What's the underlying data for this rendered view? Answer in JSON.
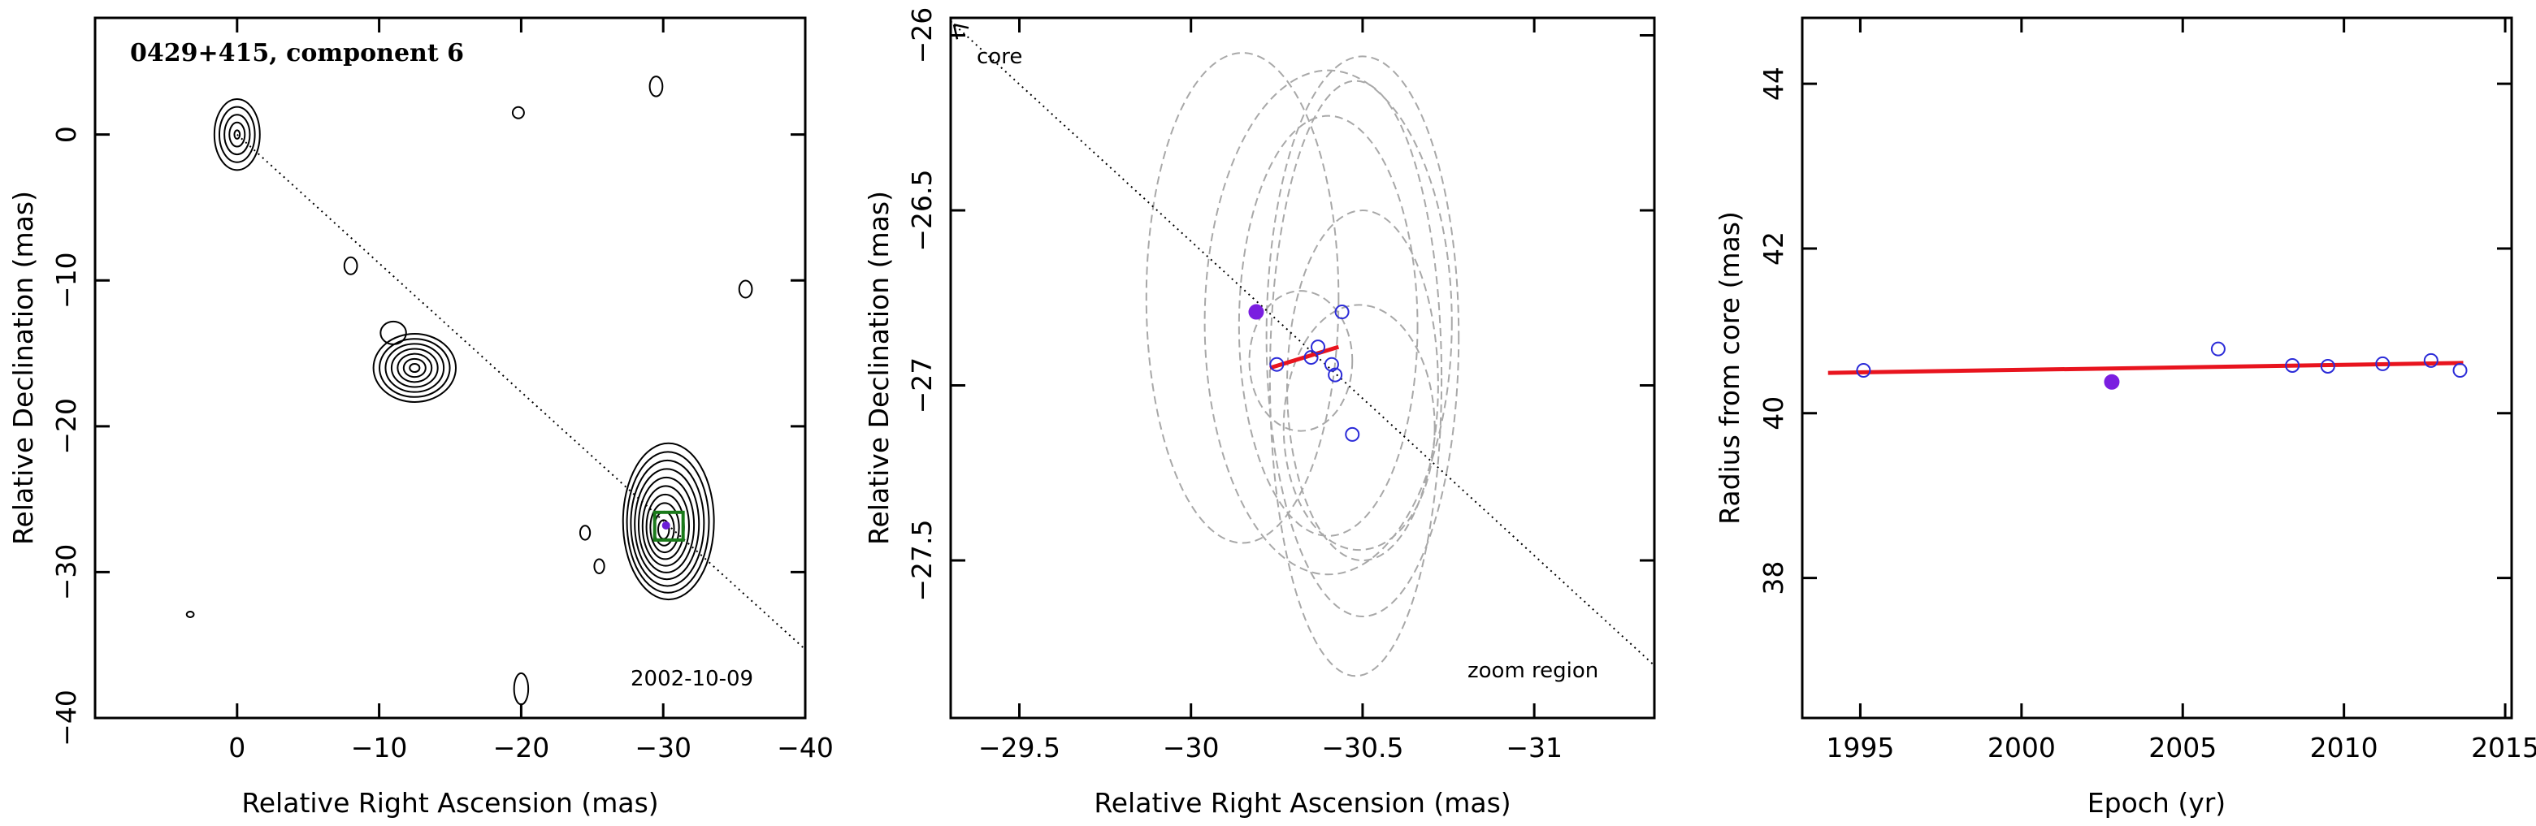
{
  "chart_data": [
    {
      "type": "contour",
      "title": "0429+415, component 6",
      "date_label": "2002-10-09",
      "xlabel": "Relative Right Ascension (mas)",
      "ylabel": "Relative Declination (mas)",
      "xlim": [
        10,
        -40
      ],
      "ylim": [
        -40,
        8
      ],
      "xticks": [
        0,
        -10,
        -20,
        -30,
        -40
      ],
      "yticks": [
        0,
        -10,
        -20,
        -30,
        -40
      ],
      "core_line": {
        "from": [
          0,
          0
        ],
        "to": [
          -40,
          -35.3
        ]
      },
      "zoom_box": {
        "x": [
          -29.4,
          -31.4
        ],
        "y": [
          -25.9,
          -27.8
        ]
      },
      "component_position": [
        -30.2,
        -26.8
      ],
      "contour_sources": [
        {
          "name": "core",
          "x": 0,
          "y": 0,
          "sx": 1.6,
          "sy": 2.5,
          "levels": 5
        },
        {
          "name": "knot",
          "x": -12.5,
          "y": -16,
          "sx": 2.9,
          "sy": 2.4,
          "levels": 7
        },
        {
          "name": "component",
          "x": -30.2,
          "y": -26.8,
          "sx": 3.2,
          "sy": 5.5,
          "levels": 10
        },
        {
          "name": "spot",
          "x": -19.8,
          "y": 1.5,
          "sx": 0.4,
          "sy": 0.4,
          "levels": 1
        },
        {
          "name": "spot",
          "x": -29.5,
          "y": 3.3,
          "sx": 0.45,
          "sy": 0.7,
          "levels": 1
        },
        {
          "name": "spot",
          "x": -8,
          "y": -9,
          "sx": 0.45,
          "sy": 0.6,
          "levels": 1
        },
        {
          "name": "spot",
          "x": -35.8,
          "y": -10.6,
          "sx": 0.45,
          "sy": 0.6,
          "levels": 1
        },
        {
          "name": "spot",
          "x": -11,
          "y": -13.6,
          "sx": 0.9,
          "sy": 0.8,
          "levels": 1
        },
        {
          "name": "spot",
          "x": -24.5,
          "y": -27.3,
          "sx": 0.35,
          "sy": 0.5,
          "levels": 1
        },
        {
          "name": "spot",
          "x": -25.5,
          "y": -29.6,
          "sx": 0.35,
          "sy": 0.5,
          "levels": 1
        },
        {
          "name": "spot",
          "x": -20,
          "y": -38,
          "sx": 0.5,
          "sy": 1.1,
          "levels": 1
        },
        {
          "name": "spot",
          "x": 3.3,
          "y": -32.9,
          "sx": 0.25,
          "sy": 0.2,
          "levels": 1
        }
      ]
    },
    {
      "type": "scatter",
      "xlabel": "Relative Right Ascension (mas)",
      "ylabel": "Relative Declination (mas)",
      "xlim": [
        -29.3,
        -31.35
      ],
      "ylim": [
        -27.95,
        -25.95
      ],
      "xticks": [
        -29.5,
        -30,
        -30.5,
        -31
      ],
      "yticks": [
        -26,
        -26.5,
        -27,
        -27.5
      ],
      "annotations": {
        "core": "core",
        "zoom": "zoom region"
      },
      "core_line": {
        "from": [
          -29.3,
          -25.96
        ],
        "to": [
          -31.35,
          -27.8
        ]
      },
      "series": [
        {
          "marker": "open",
          "points": [
            [
              -30.44,
              -26.79
            ],
            [
              -30.37,
              -26.89
            ],
            [
              -30.35,
              -26.92
            ],
            [
              -30.41,
              -26.94
            ],
            [
              -30.25,
              -26.94
            ],
            [
              -30.42,
              -26.97
            ],
            [
              -30.47,
              -27.14
            ]
          ]
        },
        {
          "marker": "filled",
          "points": [
            [
              -30.19,
              -26.79
            ]
          ]
        }
      ],
      "fit_line": {
        "from": [
          -30.23,
          -26.95
        ],
        "to": [
          -30.43,
          -26.89
        ]
      },
      "ellipses": [
        {
          "cx": -30.15,
          "cy": -26.75,
          "rx": 0.28,
          "ry": 0.7
        },
        {
          "cx": -30.4,
          "cy": -26.82,
          "rx": 0.36,
          "ry": 0.72
        },
        {
          "cx": -30.48,
          "cy": -26.98,
          "rx": 0.25,
          "ry": 0.85
        },
        {
          "cx": -30.5,
          "cy": -26.86,
          "rx": 0.28,
          "ry": 0.8
        },
        {
          "cx": -30.4,
          "cy": -26.83,
          "rx": 0.26,
          "ry": 0.6
        },
        {
          "cx": -30.5,
          "cy": -27.0,
          "rx": 0.22,
          "ry": 0.5
        },
        {
          "cx": -30.49,
          "cy": -27.12,
          "rx": 0.22,
          "ry": 0.35
        },
        {
          "cx": -30.32,
          "cy": -26.93,
          "rx": 0.15,
          "ry": 0.2
        }
      ]
    },
    {
      "type": "scatter",
      "xlabel": "Epoch (yr)",
      "ylabel": "Radius from core (mas)",
      "xlim": [
        1993.2,
        2015.2
      ],
      "ylim": [
        36.3,
        44.8
      ],
      "xticks": [
        1995,
        2000,
        2005,
        2010,
        2015
      ],
      "yticks": [
        38,
        40,
        42,
        44
      ],
      "series": [
        {
          "marker": "open",
          "x": [
            1995.1,
            2006.1,
            2008.4,
            2009.5,
            2011.2,
            2012.7,
            2013.6
          ],
          "y": [
            40.52,
            40.78,
            40.58,
            40.57,
            40.6,
            40.64,
            40.52
          ]
        },
        {
          "marker": "filled",
          "x": [
            2002.8
          ],
          "y": [
            40.38
          ]
        }
      ],
      "fit_line": {
        "x": [
          1994,
          2013.7
        ],
        "y": [
          40.49,
          40.61
        ]
      }
    }
  ]
}
